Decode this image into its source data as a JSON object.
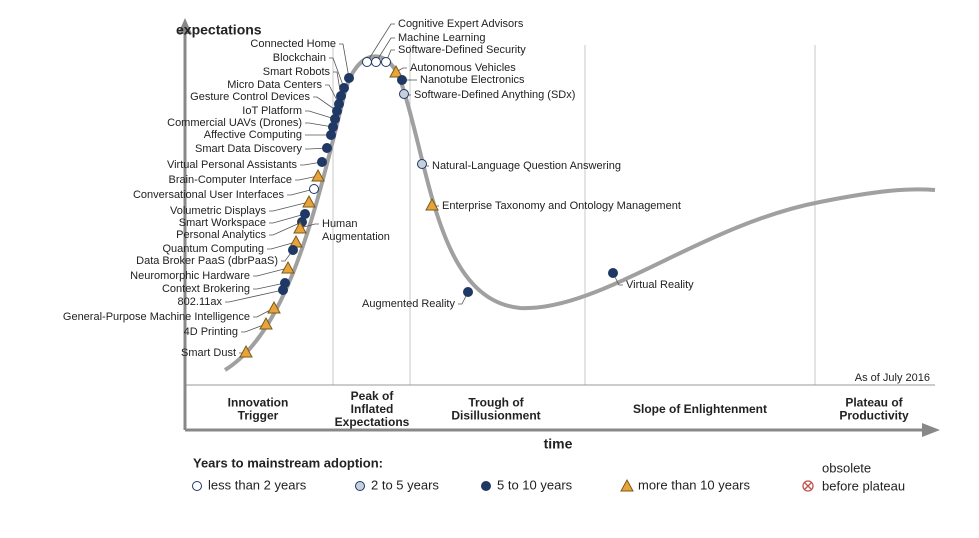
{
  "axes": {
    "y_label": "expectations",
    "x_label": "time"
  },
  "as_of": "As of July 2016",
  "phases": [
    [
      "Innovation",
      "Trigger"
    ],
    [
      "Peak of",
      "Inflated",
      "Expectations"
    ],
    [
      "Trough of",
      "Disillusionment"
    ],
    [
      "Slope of Enlightenment"
    ],
    [
      "Plateau of",
      "Productivity"
    ]
  ],
  "technologies": [
    "Connected Home",
    "Blockchain",
    "Smart Robots",
    "Micro Data Centers",
    "Gesture Control Devices",
    "IoT Platform",
    "Commercial UAVs (Drones)",
    "Affective Computing",
    "Smart Data Discovery",
    "Virtual Personal Assistants",
    "Brain-Computer Interface",
    "Conversational User Interfaces",
    "Volumetric Displays",
    "Smart Workspace",
    "Personal Analytics",
    [
      "Human",
      "Augmentation"
    ],
    "Quantum Computing",
    "Data Broker PaaS (dbrPaaS)",
    "Neuromorphic Hardware",
    "Context Brokering",
    "802.11ax",
    "General-Purpose Machine Intelligence",
    "4D Printing",
    "Smart Dust",
    "Cognitive Expert Advisors",
    "Machine Learning",
    "Software-Defined Security",
    "Autonomous Vehicles",
    "Nanotube Electronics",
    "Software-Defined Anything (SDx)",
    "Natural-Language Question Answering",
    "Enterprise Taxonomy and Ontology Management",
    "Augmented Reality",
    "Virtual Reality"
  ],
  "legend": {
    "title": "Years to mainstream adoption:",
    "items": [
      [
        "less than 2 years"
      ],
      [
        "2 to 5 years"
      ],
      [
        "5 to 10 years"
      ],
      [
        "more than 10 years"
      ],
      [
        "obsolete",
        "before plateau"
      ]
    ]
  }
}
